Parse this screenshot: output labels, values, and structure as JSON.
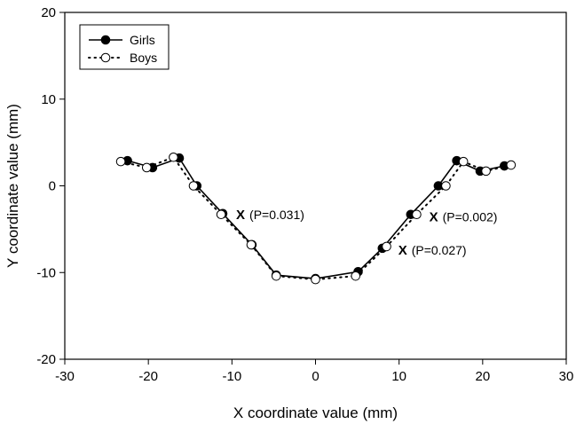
{
  "chart_data": {
    "type": "line",
    "xlabel": "X coordinate value (mm)",
    "ylabel": "Y coordinate value (mm)",
    "xlim": [
      -30,
      30
    ],
    "ylim": [
      -20,
      20
    ],
    "xticks": [
      -30,
      -20,
      -10,
      0,
      10,
      20,
      30
    ],
    "yticks": [
      -20,
      -10,
      0,
      10,
      20
    ],
    "grid": false,
    "legend_position": "top-left",
    "series": [
      {
        "name": "Girls",
        "marker": "filled-circle",
        "line": "solid",
        "color": "#000000",
        "points": [
          [
            -22.5,
            2.9
          ],
          [
            -19.5,
            2.1
          ],
          [
            -16.3,
            3.2
          ],
          [
            -14.2,
            0.0
          ],
          [
            -11.1,
            -3.2
          ],
          [
            -7.6,
            -6.8
          ],
          [
            -4.7,
            -10.3
          ],
          [
            0.0,
            -10.7
          ],
          [
            5.1,
            -9.9
          ],
          [
            8.0,
            -7.2
          ],
          [
            11.4,
            -3.3
          ],
          [
            14.7,
            0.0
          ],
          [
            16.9,
            2.9
          ],
          [
            19.7,
            1.7
          ],
          [
            22.6,
            2.3
          ]
        ]
      },
      {
        "name": "Boys",
        "marker": "open-circle",
        "line": "dotted",
        "color": "#000000",
        "points": [
          [
            -23.3,
            2.8
          ],
          [
            -20.2,
            2.1
          ],
          [
            -17.0,
            3.3
          ],
          [
            -14.6,
            0.0
          ],
          [
            -11.3,
            -3.3
          ],
          [
            -7.7,
            -6.8
          ],
          [
            -4.7,
            -10.4
          ],
          [
            0.0,
            -10.8
          ],
          [
            4.8,
            -10.4
          ],
          [
            8.5,
            -7.0
          ],
          [
            12.1,
            -3.3
          ],
          [
            15.6,
            0.0
          ],
          [
            17.7,
            2.8
          ],
          [
            20.4,
            1.7
          ],
          [
            23.4,
            2.4
          ]
        ]
      }
    ],
    "annotations": [
      {
        "mark": "X",
        "text": "(P=0.031)",
        "x": -9.5,
        "y": -3.3
      },
      {
        "mark": "X",
        "text": "(P=0.002)",
        "x": 13.6,
        "y": -3.6
      },
      {
        "mark": "X",
        "text": "(P=0.027)",
        "x": 9.9,
        "y": -7.4
      }
    ]
  }
}
